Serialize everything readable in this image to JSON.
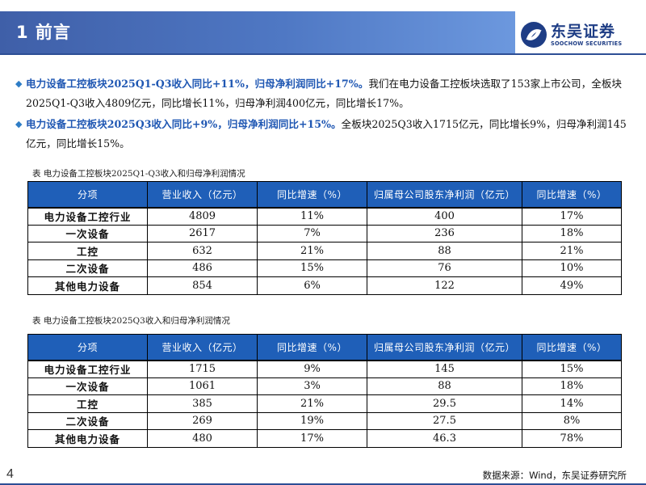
{
  "header": {
    "title": "1 前言"
  },
  "logo": {
    "cn": "东吴证券",
    "en": "SOOCHOW SECURITIES"
  },
  "bullets": [
    {
      "lead": "电力设备工控板块2025Q1-Q3收入同比+11%，归母净利润同比+17%。",
      "text": "我们在电力设备工控板块选取了153家上市公司，全板块2025Q1-Q3收入4809亿元，同比增长11%，归母净利润400亿元，同比增长17%。"
    },
    {
      "lead": "电力设备工控板块2025Q3收入同比+9%，归母净利润同比+15%。",
      "text": "全板块2025Q3收入1715亿元，同比增长9%，归母净利润145亿元，同比增长15%。"
    }
  ],
  "tables": [
    {
      "caption": "表 电力设备工控板块2025Q1-Q3收入和归母净利润情况",
      "headers": [
        "分项",
        "营业收入（亿元）",
        "同比增速（%）",
        "归属母公司股东净利润（亿元）",
        "同比增速（%）"
      ],
      "rows": [
        [
          "电力设备工控行业",
          "4809",
          "11%",
          "400",
          "17%"
        ],
        [
          "一次设备",
          "2617",
          "7%",
          "236",
          "18%"
        ],
        [
          "工控",
          "632",
          "21%",
          "88",
          "21%"
        ],
        [
          "二次设备",
          "486",
          "15%",
          "76",
          "10%"
        ],
        [
          "其他电力设备",
          "854",
          "6%",
          "122",
          "49%"
        ]
      ]
    },
    {
      "caption": "表 电力设备工控板块2025Q3收入和归母净利润情况",
      "headers": [
        "分项",
        "营业收入（亿元）",
        "同比增速（%）",
        "归属母公司股东净利润（亿元）",
        "同比增速（%）"
      ],
      "rows": [
        [
          "电力设备工控行业",
          "1715",
          "9%",
          "145",
          "15%"
        ],
        [
          "一次设备",
          "1061",
          "3%",
          "88",
          "18%"
        ],
        [
          "工控",
          "385",
          "21%",
          "29.5",
          "14%"
        ],
        [
          "二次设备",
          "269",
          "19%",
          "27.5",
          "8%"
        ],
        [
          "其他电力设备",
          "480",
          "17%",
          "46.3",
          "78%"
        ]
      ]
    }
  ],
  "footer": {
    "page": "4",
    "source": "数据来源：Wind，东吴证券研究所"
  },
  "colors": {
    "header": "#4f78c4",
    "table_header": "#1f5fb8",
    "lead_text": "#1f57b3",
    "brand": "#1e3d85"
  }
}
